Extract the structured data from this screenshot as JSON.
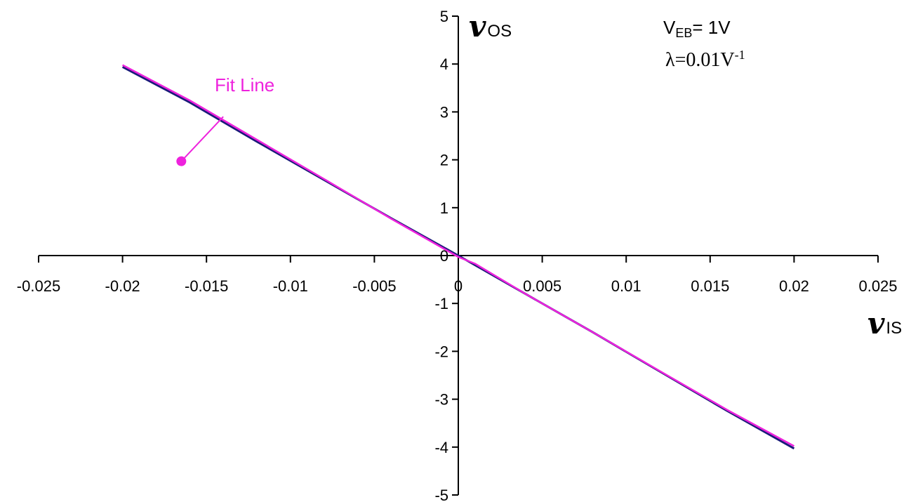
{
  "chart_data": {
    "type": "line",
    "xlim": [
      -0.025,
      0.025
    ],
    "ylim": [
      -5,
      5
    ],
    "x_ticks": [
      -0.025,
      -0.02,
      -0.015,
      -0.01,
      -0.005,
      0,
      0.005,
      0.01,
      0.015,
      0.02,
      0.025
    ],
    "x_tick_labels": [
      "-0.025",
      "-0.02",
      "-0.015",
      "-0.01",
      "-0.005",
      "0",
      "0.005",
      "0.01",
      "0.015",
      "0.02",
      "0.025"
    ],
    "y_ticks": [
      5,
      4,
      3,
      2,
      1,
      0,
      -1,
      -2,
      -3,
      -4,
      -5
    ],
    "y_tick_labels": [
      "5",
      "4",
      "3",
      "2",
      "1",
      "0",
      "-1",
      "-2",
      "-3",
      "-4",
      "-5"
    ],
    "xlabel": {
      "var": "v",
      "sub": "IS"
    },
    "ylabel": {
      "var": "v",
      "sub": "OS"
    },
    "grid": false,
    "series": [
      {
        "color": "#1a1a7a",
        "x": [
          -0.02,
          -0.016,
          -0.012,
          -0.008,
          -0.004,
          0,
          0.004,
          0.008,
          0.012,
          0.016,
          0.02
        ],
        "y": [
          3.94,
          3.2,
          2.38,
          1.58,
          0.78,
          0.0,
          -0.8,
          -1.6,
          -2.42,
          -3.24,
          -4.03
        ]
      },
      {
        "name": "Fit Line",
        "color": "#ee22dd",
        "x": [
          -0.02,
          -0.016,
          -0.012,
          -0.008,
          -0.004,
          0,
          0.001,
          0.004,
          0.008,
          0.012,
          0.016,
          0.02
        ],
        "y": [
          3.98,
          3.24,
          2.42,
          1.6,
          0.77,
          -0.03,
          -0.17,
          -0.8,
          -1.6,
          -2.41,
          -3.22,
          -3.98
        ]
      }
    ],
    "annotations": {
      "veb": {
        "main": "V",
        "sub": "EB",
        "rest": "= 1V"
      },
      "lambda": {
        "main": "λ=0.01V",
        "sup": "-1"
      },
      "fit_line": {
        "text": "Fit Line",
        "color": "#ee22dd",
        "marker_x": -0.0165,
        "marker_y": 1.97,
        "arrow_to_x": -0.014,
        "arrow_to_y": 2.9
      }
    }
  }
}
